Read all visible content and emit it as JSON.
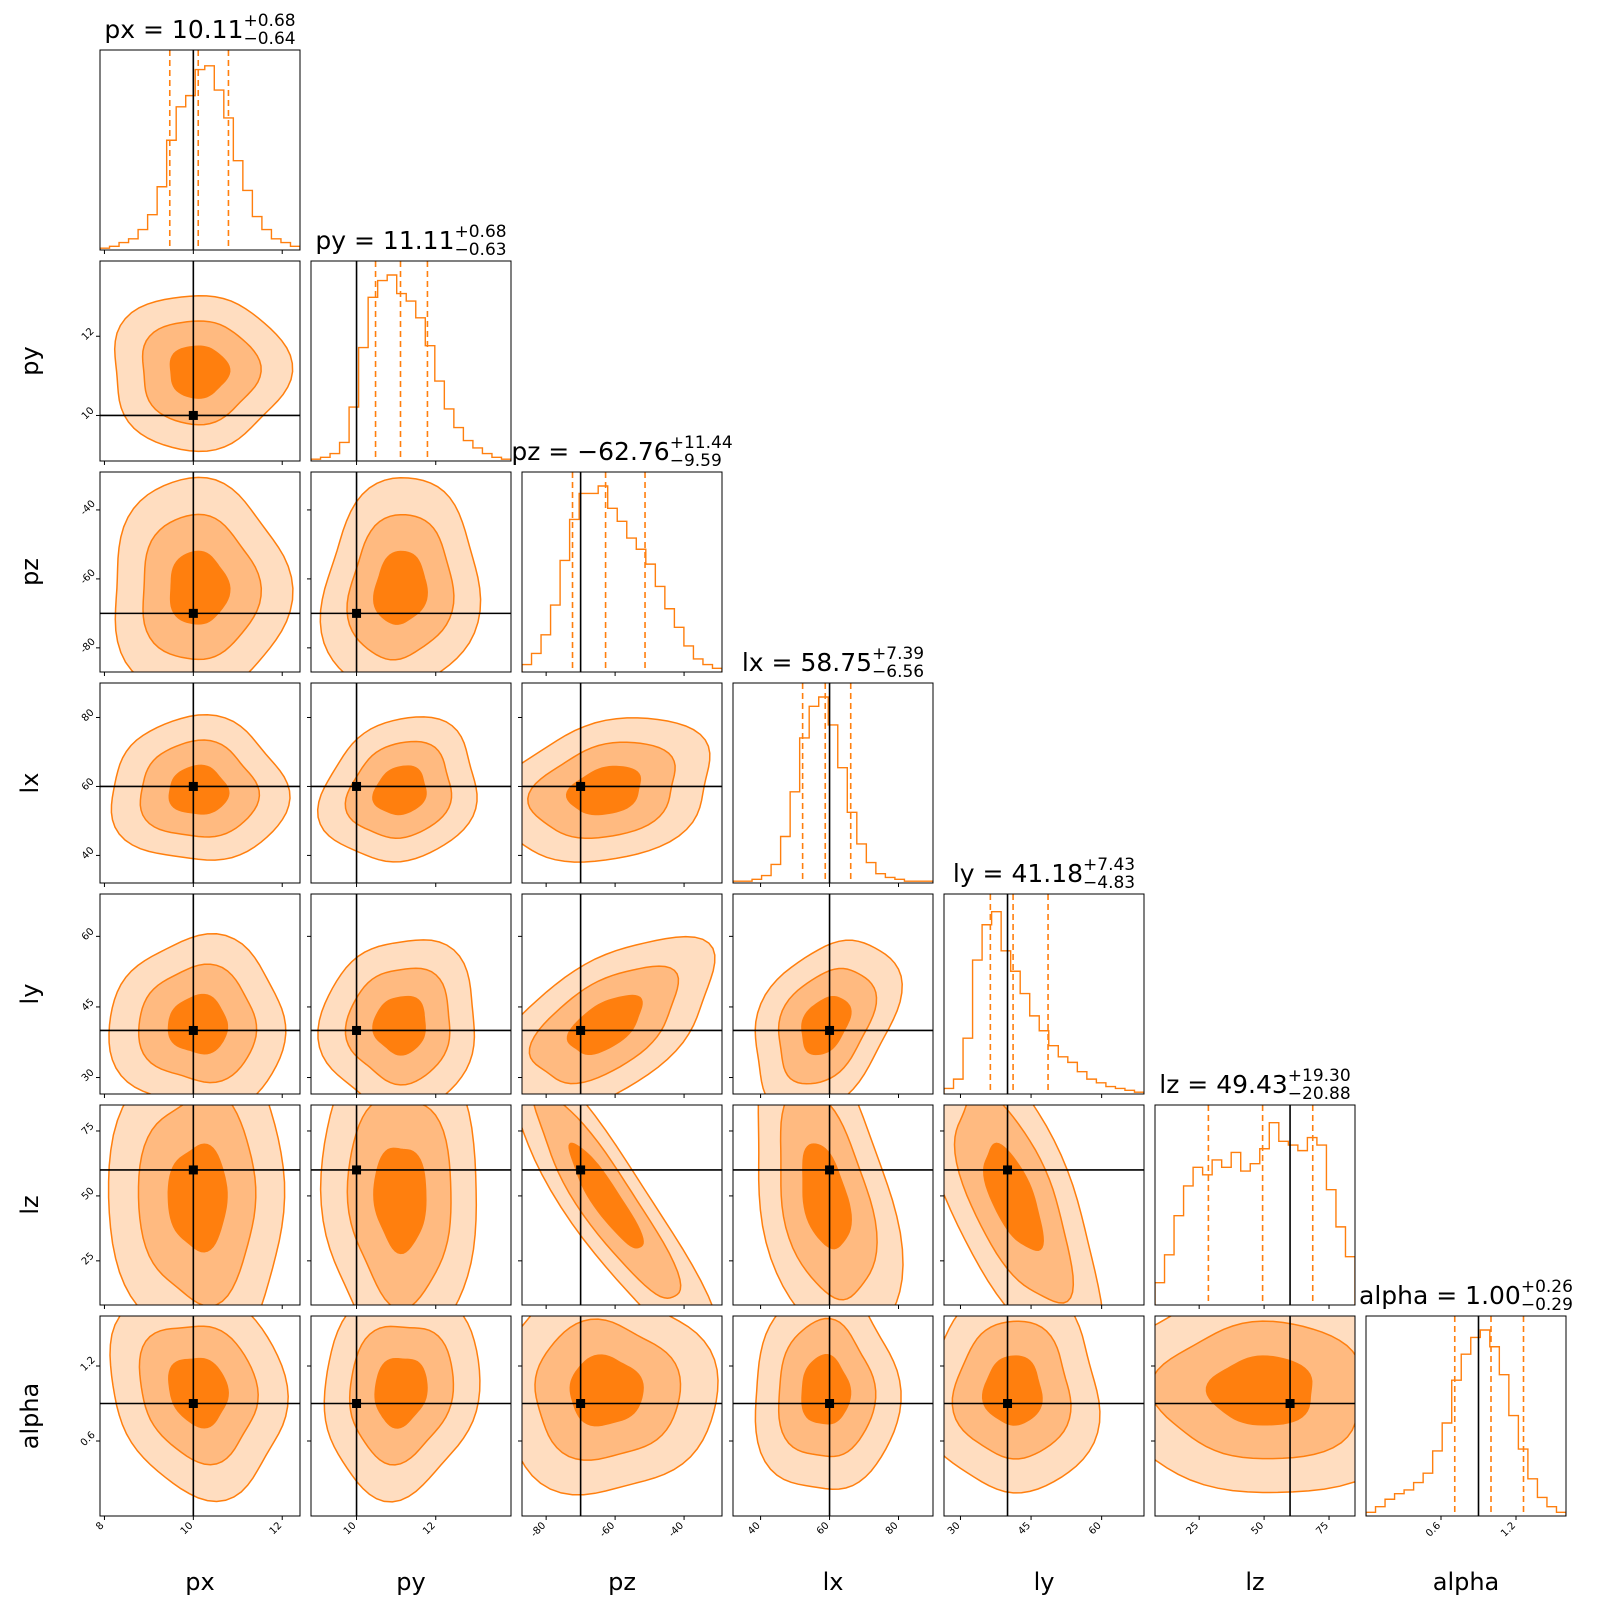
{
  "colors": {
    "accent": "#ff7f0e",
    "level_outer": "#ffddc0",
    "level_mid": "#ffba80",
    "level_inner": "#ff7f0e",
    "truth": "#000000"
  },
  "chart_data": {
    "type": "corner",
    "parameters": [
      "px",
      "py",
      "pz",
      "lx",
      "ly",
      "lz",
      "alpha"
    ],
    "ranges": {
      "px": [
        7.9,
        12.4
      ],
      "py": [
        8.85,
        13.9
      ],
      "pz": [
        -87,
        -29
      ],
      "lx": [
        32,
        90
      ],
      "ly": [
        26.5,
        69
      ],
      "lz": [
        8,
        85
      ],
      "alpha": [
        0.0,
        1.6
      ]
    },
    "ticks": {
      "px": [
        "8",
        "10",
        "12"
      ],
      "py": [
        "10",
        "12"
      ],
      "pz": [
        "-80",
        "-60",
        "-40"
      ],
      "lx": [
        "40",
        "60",
        "80"
      ],
      "ly": [
        "30",
        "45",
        "60"
      ],
      "lz": [
        "25",
        "50",
        "75"
      ],
      "alpha": [
        "0.6",
        "1.2"
      ]
    },
    "truths": {
      "px": 10,
      "py": 10,
      "pz": -70,
      "lx": 60,
      "ly": 40,
      "lz": 60,
      "alpha": 0.9
    },
    "quantiles": {
      "px": [
        9.47,
        10.11,
        10.79
      ],
      "py": [
        10.48,
        11.11,
        11.79
      ],
      "pz": [
        -72.35,
        -62.76,
        -51.32
      ],
      "lx": [
        52.19,
        58.75,
        66.14
      ],
      "ly": [
        36.35,
        41.18,
        48.61
      ],
      "lz": [
        28.55,
        49.43,
        68.73
      ],
      "alpha": [
        0.71,
        1.0,
        1.26
      ]
    },
    "titles": [
      {
        "param": "px",
        "text": "px = 10.11",
        "plus": "+0.68",
        "minus": "−0.64"
      },
      {
        "param": "py",
        "text": "py = 11.11",
        "plus": "+0.68",
        "minus": "−0.63"
      },
      {
        "param": "pz",
        "text": "pz = −62.76",
        "plus": "+11.44",
        "minus": "−9.59"
      },
      {
        "param": "lx",
        "text": "lx = 58.75",
        "plus": "+7.39",
        "minus": "−6.56"
      },
      {
        "param": "ly",
        "text": "ly = 41.18",
        "plus": "+7.43",
        "minus": "−4.83"
      },
      {
        "param": "lz",
        "text": "lz = 49.43",
        "plus": "+19.30",
        "minus": "−20.88"
      },
      {
        "param": "alpha",
        "text": "alpha = 1.00",
        "plus": "+0.26",
        "minus": "−0.29"
      }
    ],
    "histograms": {
      "px": [
        0.01,
        0.02,
        0.04,
        0.06,
        0.11,
        0.19,
        0.34,
        0.59,
        0.77,
        0.83,
        0.97,
        0.99,
        0.86,
        0.71,
        0.48,
        0.32,
        0.18,
        0.11,
        0.06,
        0.04,
        0.02
      ],
      "py": [
        0.01,
        0.02,
        0.04,
        0.1,
        0.29,
        0.61,
        0.88,
        0.97,
        1.0,
        0.9,
        0.86,
        0.77,
        0.62,
        0.43,
        0.28,
        0.18,
        0.11,
        0.07,
        0.04,
        0.02,
        0.01
      ],
      "pz": [
        0.04,
        0.1,
        0.2,
        0.36,
        0.6,
        0.82,
        0.96,
        0.96,
        1.0,
        0.88,
        0.81,
        0.72,
        0.66,
        0.58,
        0.46,
        0.34,
        0.24,
        0.14,
        0.07,
        0.04,
        0.02
      ],
      "lx": [
        0.01,
        0.01,
        0.02,
        0.04,
        0.1,
        0.25,
        0.49,
        0.78,
        0.95,
        1.0,
        0.85,
        0.62,
        0.38,
        0.21,
        0.11,
        0.05,
        0.03,
        0.02,
        0.01,
        0.01,
        0.01
      ],
      "ly": [
        0.03,
        0.08,
        0.3,
        0.72,
        0.91,
        0.98,
        0.77,
        0.66,
        0.54,
        0.42,
        0.34,
        0.26,
        0.2,
        0.17,
        0.12,
        0.08,
        0.06,
        0.04,
        0.03,
        0.02,
        0.01
      ],
      "lz": [
        0.12,
        0.27,
        0.48,
        0.64,
        0.74,
        0.7,
        0.78,
        0.74,
        0.82,
        0.72,
        0.76,
        0.84,
        0.98,
        0.88,
        0.86,
        0.83,
        0.9,
        0.86,
        0.62,
        0.42,
        0.26
      ],
      "alpha": [
        0.02,
        0.05,
        0.09,
        0.12,
        0.14,
        0.18,
        0.23,
        0.35,
        0.5,
        0.73,
        0.87,
        0.96,
        1.0,
        0.91,
        0.76,
        0.54,
        0.36,
        0.2,
        0.1,
        0.05,
        0.02
      ]
    },
    "correlations": {
      "py|px": 0.0,
      "pz|px": 0.0,
      "pz|py": 0.1,
      "lx|px": 0.0,
      "lx|py": 0.15,
      "lx|pz": 0.25,
      "ly|px": 0.0,
      "ly|py": 0.05,
      "ly|pz": 0.55,
      "ly|lx": 0.35,
      "lz|px": 0.0,
      "lz|py": -0.05,
      "lz|pz": -0.9,
      "lz|lx": -0.4,
      "lz|ly": -0.65,
      "alpha|px": -0.15,
      "alpha|py": 0.1,
      "alpha|pz": 0.0,
      "alpha|lx": 0.0,
      "alpha|ly": 0.0,
      "alpha|lz": 0.0
    }
  }
}
